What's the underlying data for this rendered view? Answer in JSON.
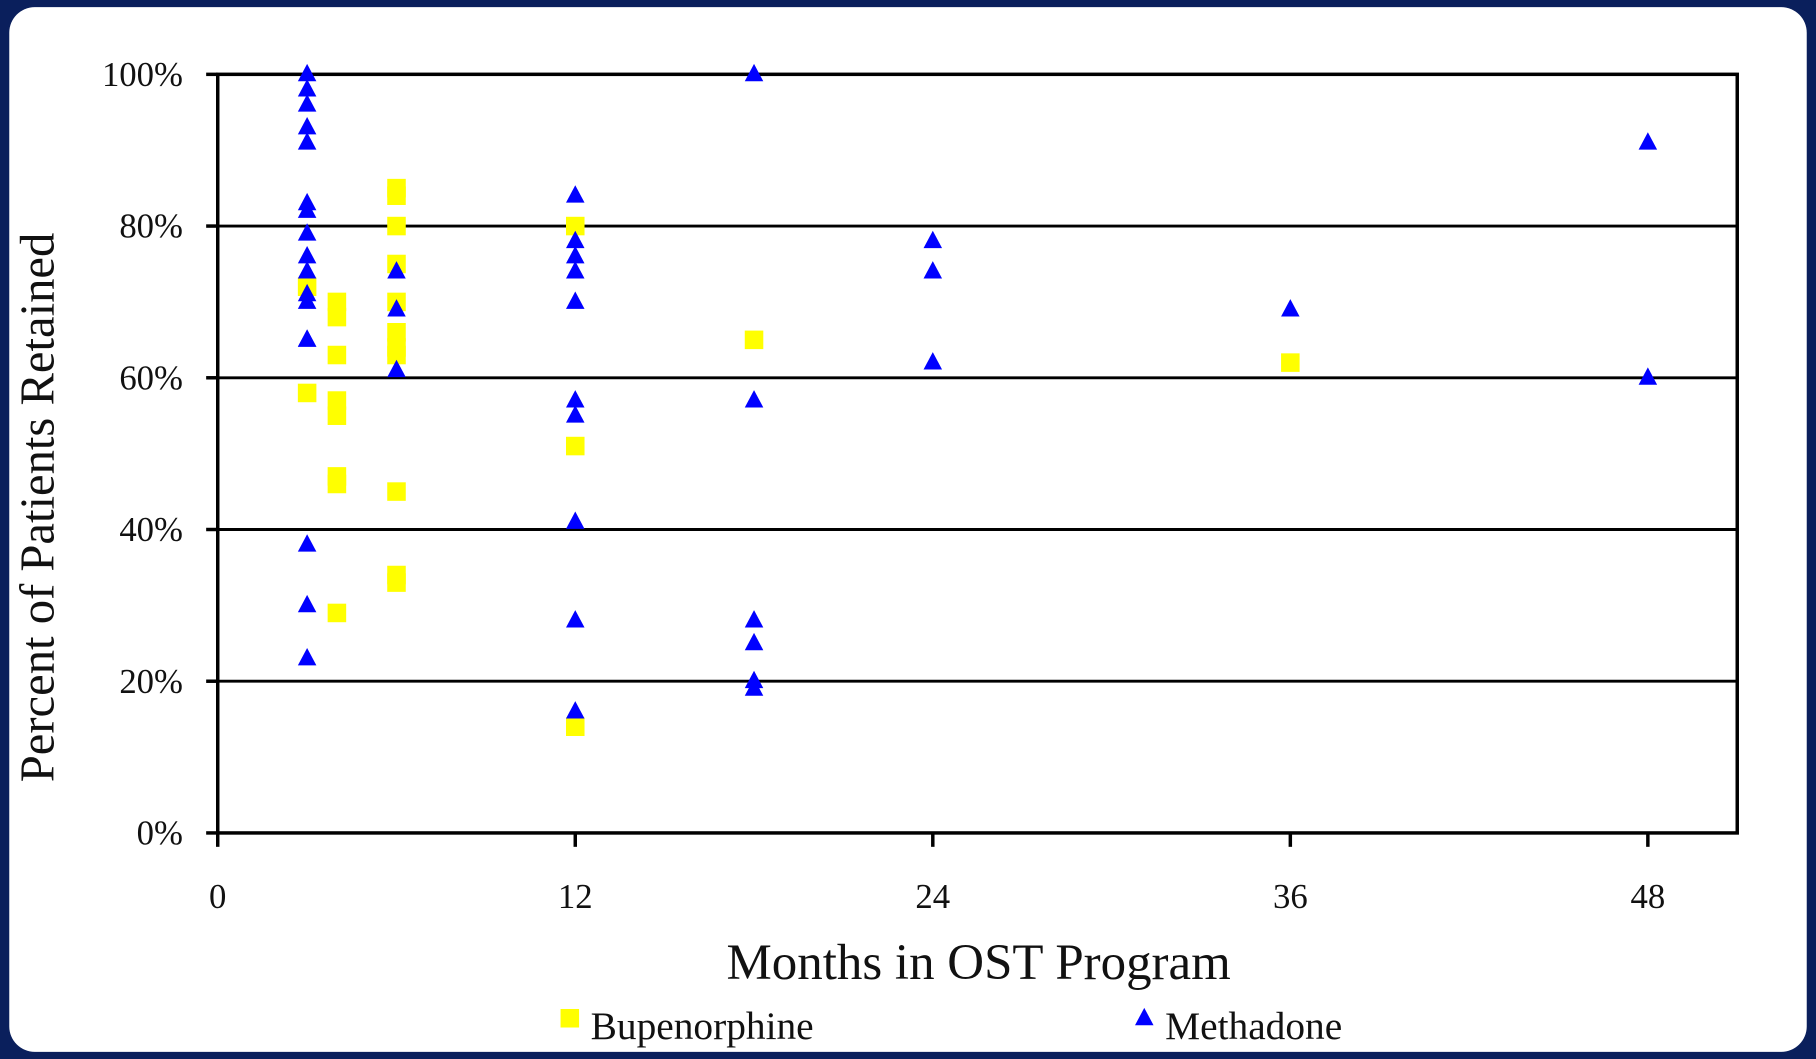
{
  "chart_data": {
    "type": "scatter",
    "x_label": "Months in OST Program",
    "y_label": "Percent of Patients Retained",
    "xlim": [
      0,
      51
    ],
    "xticks": [
      0,
      12,
      24,
      36,
      48
    ],
    "ylim": [
      0,
      100
    ],
    "yticks": [
      {
        "value": 0,
        "label": "0%"
      },
      {
        "value": 20,
        "label": "20%"
      },
      {
        "value": 40,
        "label": "40%"
      },
      {
        "value": 60,
        "label": "60%"
      },
      {
        "value": 80,
        "label": "80%"
      },
      {
        "value": 100,
        "label": "100%"
      }
    ],
    "grid": true,
    "series": [
      {
        "name": "Bupenorphine",
        "color": "#ffff00",
        "marker": "square",
        "x": [
          3,
          3,
          4,
          4,
          4,
          4,
          4,
          4,
          4,
          4,
          6,
          6,
          6,
          6,
          6,
          6,
          6,
          6,
          6,
          6,
          6,
          12,
          12,
          12,
          18,
          36
        ],
        "y": [
          72,
          58,
          70,
          68,
          63,
          57,
          55,
          47,
          46,
          29,
          85,
          84,
          80,
          75,
          70,
          66,
          64,
          63,
          45,
          34,
          33,
          80,
          51,
          14,
          65,
          62
        ]
      },
      {
        "name": "Methadone",
        "color": "#0000ff",
        "marker": "triangle",
        "x": [
          3,
          3,
          3,
          3,
          3,
          3,
          3,
          3,
          3,
          3,
          3,
          3,
          3,
          3,
          3,
          3,
          3,
          6,
          6,
          6,
          12,
          12,
          12,
          12,
          12,
          12,
          12,
          12,
          12,
          12,
          18,
          18,
          18,
          18,
          18,
          18,
          24,
          24,
          24,
          36,
          48,
          48
        ],
        "y": [
          100,
          98,
          96,
          93,
          91,
          83,
          82,
          79,
          76,
          74,
          71,
          70,
          65,
          65,
          38,
          30,
          23,
          74,
          69,
          61,
          84,
          78,
          76,
          74,
          70,
          57,
          55,
          41,
          28,
          16,
          100,
          57,
          28,
          25,
          20,
          19,
          78,
          74,
          62,
          69,
          91,
          60
        ]
      }
    ]
  }
}
